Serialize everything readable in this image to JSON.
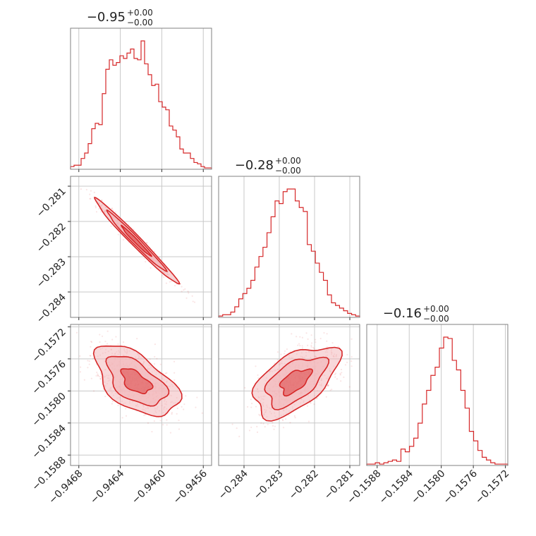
{
  "colors": {
    "accent": "#d62728",
    "fill": "#f2b8bb",
    "grid": "#c8c8c8",
    "frame": "#808080"
  },
  "chart_data": {
    "type": "corner",
    "parameters": [
      {
        "title_value": "−0.95",
        "title_plus": "+0.00",
        "title_minus": "−0.00",
        "range": [
          -0.94688,
          -0.94552
        ],
        "ticks": [
          -0.9468,
          -0.9464,
          -0.946,
          -0.9456
        ],
        "tick_labels": [
          "−0.9468",
          "−0.9464",
          "−0.9460",
          "−0.9456"
        ],
        "hist": [
          2,
          3,
          3,
          8,
          12,
          19,
          30,
          34,
          33,
          56,
          74,
          81,
          77,
          79,
          84,
          82,
          86,
          89,
          82,
          81,
          95,
          78,
          70,
          62,
          63,
          50,
          46,
          44,
          32,
          29,
          24,
          15,
          12,
          12,
          8,
          5,
          4,
          2,
          1,
          1
        ]
      },
      {
        "title_value": "−0.28",
        "title_plus": "+0.00",
        "title_minus": "−0.00",
        "range": [
          -0.28472,
          -0.28072
        ],
        "ticks": [
          -0.284,
          -0.283,
          -0.282,
          -0.281
        ],
        "tick_labels": [
          "−0.284",
          "−0.283",
          "−0.282",
          "−0.281"
        ],
        "hist": [
          1,
          2,
          2,
          4,
          8,
          14,
          18,
          22,
          28,
          38,
          46,
          53,
          64,
          76,
          88,
          86,
          95,
          97,
          97,
          88,
          83,
          80,
          55,
          50,
          41,
          34,
          28,
          17,
          11,
          9,
          7,
          5,
          3,
          2,
          1
        ]
      },
      {
        "title_value": "−0.16",
        "title_plus": "+0.00",
        "title_minus": "−0.00",
        "range": [
          -0.15893,
          -0.15717
        ],
        "ticks": [
          -0.1588,
          -0.1584,
          -0.158,
          -0.1576,
          -0.1572
        ],
        "tick_labels": [
          "−0.1588",
          "−0.1584",
          "−0.1580",
          "−0.1576",
          "−0.1572"
        ],
        "hist": [
          1,
          1,
          2,
          1,
          2,
          3,
          4,
          3,
          12,
          10,
          14,
          20,
          31,
          45,
          55,
          66,
          72,
          86,
          94,
          93,
          77,
          70,
          55,
          42,
          25,
          18,
          11,
          6,
          4,
          2,
          1,
          1,
          1
        ]
      }
    ],
    "left_axis_ticks": {
      "row1": [
        "−0.281",
        "−0.282",
        "−0.283",
        "−0.284"
      ],
      "row2": [
        "−0.1572",
        "−0.1576",
        "−0.1580",
        "−0.1584",
        "−0.1588"
      ]
    }
  }
}
